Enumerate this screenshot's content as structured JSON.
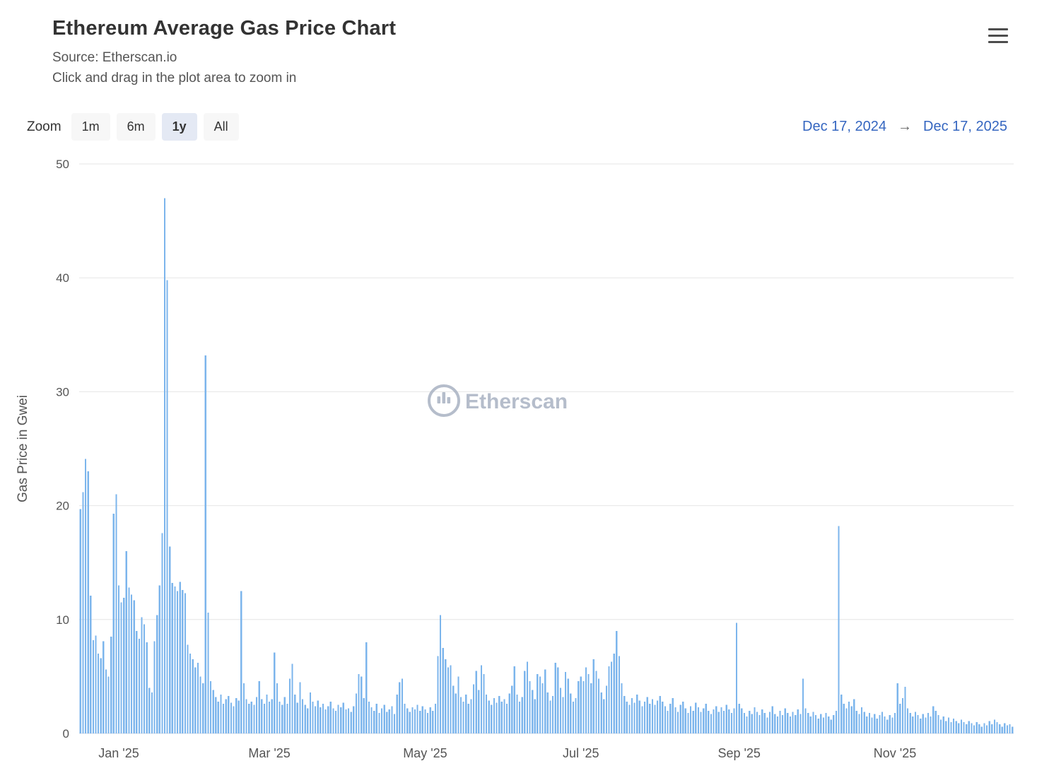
{
  "page": {
    "title": "Ethereum Average Gas Price Chart",
    "source_line": "Source: Etherscan.io",
    "hint_line": "Click and drag in the plot area to zoom in"
  },
  "controls": {
    "zoom_label": "Zoom",
    "zoom_buttons": [
      {
        "label": "1m",
        "active": false
      },
      {
        "label": "6m",
        "active": false
      },
      {
        "label": "1y",
        "active": true
      },
      {
        "label": "All",
        "active": false
      }
    ],
    "range_from": "Dec 17, 2024",
    "range_arrow": "→",
    "range_to": "Dec 17, 2025"
  },
  "watermark": {
    "text": "Etherscan"
  },
  "colors": {
    "bar": "#7cb5ec",
    "grid": "#e6e6e6",
    "axis_line": "#d8dde6",
    "axis_label": "#555555",
    "title": "#333333",
    "range_date": "#3566c0",
    "watermark": "#a9b2c2",
    "button_bg": "#f7f7f7",
    "button_active_bg": "#e4e9f4"
  },
  "chart_data": {
    "type": "bar",
    "title": "Ethereum Average Gas Price Chart",
    "subtitle": "Source: Etherscan.io",
    "xlabel": "",
    "ylabel": "Gas Price in Gwei",
    "ylim": [
      0,
      50
    ],
    "yticks": [
      0,
      10,
      20,
      30,
      40,
      50
    ],
    "grid": true,
    "legend": false,
    "x_unit": "day",
    "start_date": "2024-12-17",
    "end_date": "2025-12-17",
    "xticks": [
      {
        "label": "Jan '25",
        "index": 15
      },
      {
        "label": "Mar '25",
        "index": 74
      },
      {
        "label": "May '25",
        "index": 135
      },
      {
        "label": "Jul '25",
        "index": 196
      },
      {
        "label": "Sep '25",
        "index": 258
      },
      {
        "label": "Nov '25",
        "index": 319
      }
    ],
    "values": [
      19.7,
      21.2,
      24.1,
      23.0,
      12.1,
      8.2,
      8.6,
      7.0,
      6.6,
      8.1,
      5.6,
      5.0,
      8.5,
      19.3,
      21.0,
      13.0,
      11.5,
      11.9,
      16.0,
      12.8,
      12.2,
      11.7,
      9.0,
      8.3,
      10.2,
      9.6,
      8.0,
      4.0,
      3.6,
      8.1,
      10.4,
      13.0,
      17.6,
      47.0,
      39.8,
      16.4,
      13.2,
      12.9,
      12.5,
      13.3,
      12.6,
      12.3,
      7.8,
      7.0,
      6.5,
      5.8,
      6.2,
      5.0,
      4.4,
      33.2,
      10.6,
      4.6,
      3.8,
      3.2,
      2.8,
      3.4,
      2.6,
      3.0,
      3.3,
      2.7,
      2.4,
      3.1,
      2.9,
      12.5,
      4.4,
      3.0,
      2.6,
      2.8,
      2.5,
      3.2,
      4.6,
      3.0,
      2.6,
      3.4,
      2.8,
      3.0,
      7.1,
      4.4,
      2.8,
      2.5,
      3.2,
      2.6,
      4.8,
      6.1,
      3.4,
      2.7,
      4.5,
      3.0,
      2.5,
      2.2,
      3.6,
      2.8,
      2.4,
      2.9,
      2.3,
      2.6,
      2.1,
      2.4,
      2.8,
      2.2,
      2.0,
      2.5,
      2.3,
      2.7,
      2.1,
      2.2,
      1.9,
      2.4,
      3.5,
      5.2,
      5.0,
      3.1,
      8.0,
      2.8,
      2.3,
      2.0,
      2.6,
      1.8,
      2.2,
      2.5,
      1.9,
      2.1,
      2.4,
      1.7,
      3.4,
      4.5,
      4.8,
      2.6,
      2.2,
      1.9,
      2.3,
      2.1,
      2.5,
      2.0,
      2.4,
      2.1,
      1.8,
      2.3,
      2.0,
      2.6,
      6.8,
      10.4,
      7.5,
      6.5,
      5.8,
      6.0,
      4.2,
      3.5,
      5.0,
      3.2,
      2.8,
      3.4,
      2.6,
      3.0,
      4.3,
      5.5,
      3.8,
      6.0,
      5.2,
      3.4,
      2.9,
      2.5,
      3.1,
      2.7,
      3.3,
      2.8,
      3.0,
      2.6,
      3.5,
      4.2,
      5.9,
      3.4,
      2.8,
      3.2,
      5.5,
      6.3,
      4.6,
      3.8,
      3.0,
      5.2,
      5.0,
      4.4,
      5.6,
      3.6,
      2.9,
      3.3,
      6.2,
      5.8,
      4.0,
      3.2,
      5.4,
      4.8,
      3.5,
      2.8,
      3.1,
      4.6,
      5.0,
      4.6,
      5.8,
      5.2,
      4.4,
      6.5,
      5.5,
      4.8,
      3.6,
      3.0,
      4.2,
      5.9,
      6.3,
      7.0,
      9.0,
      6.8,
      4.4,
      3.3,
      2.8,
      2.5,
      3.1,
      2.7,
      3.4,
      2.9,
      2.4,
      2.8,
      3.2,
      2.6,
      3.0,
      2.5,
      2.9,
      3.3,
      2.8,
      2.4,
      2.0,
      2.6,
      3.1,
      2.3,
      1.9,
      2.5,
      2.8,
      2.2,
      1.8,
      2.4,
      2.0,
      2.7,
      2.3,
      1.9,
      2.2,
      2.6,
      2.0,
      1.7,
      2.1,
      2.4,
      1.9,
      2.3,
      2.0,
      2.5,
      2.1,
      1.8,
      2.2,
      9.7,
      2.6,
      2.2,
      1.8,
      1.5,
      2.0,
      1.7,
      2.3,
      1.9,
      1.6,
      2.1,
      1.8,
      1.4,
      1.9,
      2.4,
      1.7,
      1.5,
      2.0,
      1.6,
      2.2,
      1.8,
      1.5,
      1.9,
      1.6,
      2.1,
      1.7,
      4.8,
      2.2,
      1.8,
      1.5,
      1.9,
      1.6,
      1.3,
      1.7,
      1.4,
      1.8,
      1.5,
      1.2,
      1.6,
      2.0,
      18.2,
      3.4,
      2.6,
      2.2,
      2.8,
      2.4,
      3.0,
      2.0,
      1.7,
      2.3,
      1.9,
      1.5,
      1.8,
      1.4,
      1.7,
      1.3,
      1.6,
      1.9,
      1.5,
      1.2,
      1.6,
      1.4,
      1.8,
      4.4,
      2.6,
      3.1,
      4.1,
      2.2,
      1.8,
      1.5,
      1.9,
      1.6,
      1.3,
      1.7,
      1.4,
      1.8,
      1.5,
      2.4,
      2.0,
      1.6,
      1.2,
      1.5,
      1.1,
      1.4,
      1.0,
      1.3,
      1.1,
      0.9,
      1.2,
      1.0,
      0.8,
      1.1,
      0.9,
      0.7,
      1.0,
      0.8,
      0.6,
      0.9,
      0.7,
      1.1,
      0.8,
      1.2,
      1.0,
      0.8,
      0.6,
      0.9,
      0.7,
      0.8,
      0.6
    ]
  }
}
